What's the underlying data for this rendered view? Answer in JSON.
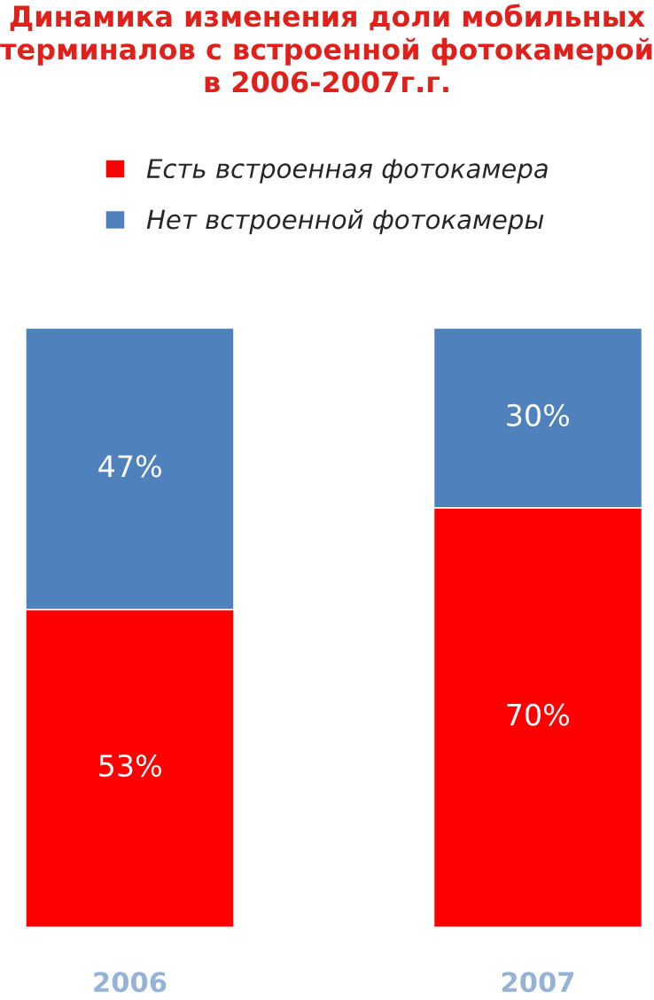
{
  "chart_data": {
    "type": "bar",
    "title": "Динамика изменения доли мобильных\nтерминалов с встроенной фотокамерой\nв 2006-2007г.г.",
    "categories": [
      "2006",
      "2007"
    ],
    "stacked": true,
    "legend": "top",
    "series": [
      {
        "name": "Есть встроенная фотокамера",
        "color": "#ff0000",
        "values": [
          53,
          70
        ],
        "value_labels": [
          "53%",
          "70%"
        ]
      },
      {
        "name": "Нет встроенной фотокамеры",
        "color": "#4f81bd",
        "values": [
          47,
          30
        ],
        "value_labels": [
          "47%",
          "30%"
        ]
      }
    ]
  }
}
